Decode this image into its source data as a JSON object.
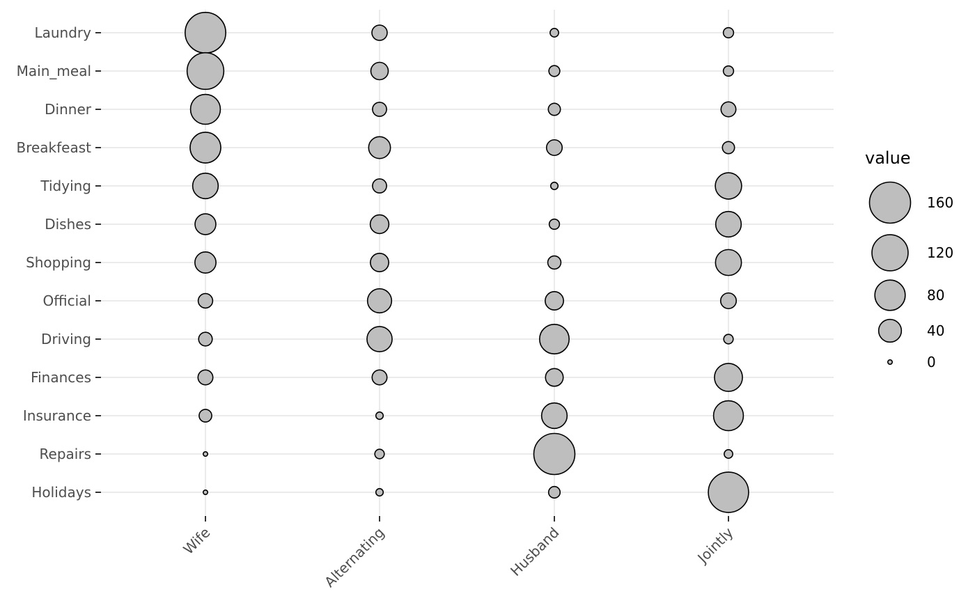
{
  "chart_data": {
    "type": "bubble",
    "categories_x": [
      "Wife",
      "Alternating",
      "Husband",
      "Jointly"
    ],
    "categories_y": [
      "Laundry",
      "Main_meal",
      "Dinner",
      "Breakfeast",
      "Tidying",
      "Dishes",
      "Shopping",
      "Official",
      "Driving",
      "Finances",
      "Insurance",
      "Repairs",
      "Holidays"
    ],
    "values": [
      {
        "row": "Laundry",
        "values": [
          156,
          14,
          2,
          4
        ]
      },
      {
        "row": "Main_meal",
        "values": [
          124,
          20,
          5,
          4
        ]
      },
      {
        "row": "Dinner",
        "values": [
          77,
          11,
          7,
          13
        ]
      },
      {
        "row": "Breakfeast",
        "values": [
          82,
          36,
          15,
          7
        ]
      },
      {
        "row": "Tidying",
        "values": [
          53,
          11,
          1,
          57
        ]
      },
      {
        "row": "Dishes",
        "values": [
          32,
          24,
          4,
          53
        ]
      },
      {
        "row": "Shopping",
        "values": [
          33,
          23,
          9,
          55
        ]
      },
      {
        "row": "Official",
        "values": [
          12,
          46,
          23,
          15
        ]
      },
      {
        "row": "Driving",
        "values": [
          10,
          51,
          75,
          3
        ]
      },
      {
        "row": "Finances",
        "values": [
          13,
          13,
          21,
          66
        ]
      },
      {
        "row": "Insurance",
        "values": [
          8,
          1,
          53,
          77
        ]
      },
      {
        "row": "Repairs",
        "values": [
          0,
          3,
          160,
          2
        ]
      },
      {
        "row": "Holidays",
        "values": [
          0,
          1,
          6,
          153
        ]
      }
    ],
    "size_legend": {
      "title": "value",
      "breaks": [
        160,
        120,
        80,
        40,
        0
      ],
      "labels": [
        "160",
        "120",
        "80",
        "40",
        "0"
      ]
    },
    "grid": true,
    "legend_position": "right",
    "colors": {
      "fill": "#bebebe",
      "stroke": "#000000",
      "grid": "#ebebeb",
      "tick_label": "#4d4d4d"
    }
  }
}
